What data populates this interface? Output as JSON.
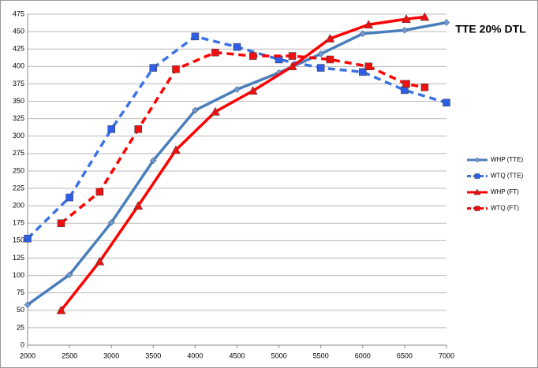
{
  "chart_data": {
    "type": "line",
    "title": "TTE 20% DTL",
    "xlim": [
      2000,
      7000
    ],
    "xticks": [
      2000,
      2500,
      3000,
      3500,
      4000,
      4500,
      5000,
      5500,
      6000,
      6500,
      7000
    ],
    "ylim": [
      0,
      475
    ],
    "yticks": [
      0,
      25,
      50,
      75,
      100,
      125,
      150,
      175,
      200,
      225,
      250,
      275,
      300,
      325,
      350,
      375,
      400,
      425,
      450,
      475
    ],
    "grid": true,
    "legend": "right",
    "series": [
      {
        "name": "WHP (TTE)",
        "color": "#4a7ebb",
        "marker_color": "#6c9bd6",
        "marker": "diamond",
        "dashed": false,
        "x": [
          2000,
          2500,
          3000,
          3500,
          4000,
          4500,
          5000,
          5500,
          6000,
          6500,
          7000
        ],
        "values": [
          58,
          101,
          176,
          265,
          337,
          367,
          391,
          418,
          447,
          452,
          463
        ]
      },
      {
        "name": "WTQ (TTE)",
        "color": "#3b73e6",
        "marker_color": "#2f5fe8",
        "marker": "square",
        "dashed": true,
        "x": [
          2000,
          2500,
          3000,
          3500,
          4000,
          4500,
          5000,
          5500,
          6000,
          6500,
          7000
        ],
        "values": [
          153,
          212,
          310,
          398,
          443,
          428,
          410,
          398,
          392,
          366,
          348
        ]
      },
      {
        "name": "WHP (FT)",
        "color": "#ff0000",
        "marker_color": "#ee1111",
        "marker": "triangle",
        "dashed": false,
        "x": [
          2400,
          2860,
          3320,
          3770,
          4240,
          4690,
          5160,
          5610,
          6070,
          6520,
          6740
        ],
        "values": [
          50,
          120,
          200,
          280,
          335,
          365,
          400,
          440,
          460,
          468,
          471
        ]
      },
      {
        "name": "WTQ (FT)",
        "color": "#ff0000",
        "marker_color": "#ee1111",
        "marker": "square",
        "dashed": true,
        "x": [
          2400,
          2860,
          3320,
          3770,
          4240,
          4690,
          5160,
          5610,
          6070,
          6520,
          6740
        ],
        "values": [
          175,
          220,
          310,
          396,
          420,
          415,
          415,
          410,
          400,
          375,
          370
        ]
      }
    ]
  }
}
